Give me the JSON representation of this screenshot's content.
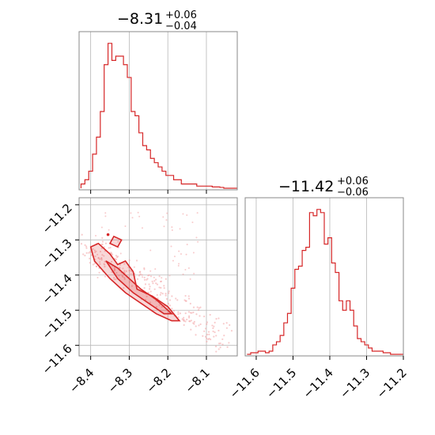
{
  "chart_data": [
    {
      "type": "histogram",
      "title": "−8.31",
      "title_upper": "+0.06",
      "title_lower": "−0.04",
      "xlim": [
        -8.43,
        -8.02
      ],
      "bins": {
        "x": [
          -8.42,
          -8.41,
          -8.4,
          -8.39,
          -8.38,
          -8.37,
          -8.36,
          -8.35,
          -8.34,
          -8.33,
          -8.32,
          -8.31,
          -8.3,
          -8.29,
          -8.28,
          -8.27,
          -8.26,
          -8.25,
          -8.24,
          -8.23,
          -8.22,
          -8.21,
          -8.2,
          -8.19,
          -8.18,
          -8.17,
          -8.16,
          -8.15,
          -8.14,
          -8.13,
          -8.12,
          -8.11,
          -8.1,
          -8.09,
          -8.08,
          -8.07,
          -8.06,
          -8.05,
          -8.04,
          -8.03
        ],
        "counts": [
          1,
          2,
          4,
          8,
          12,
          18,
          29,
          34,
          30,
          31,
          31,
          29,
          26,
          18,
          17,
          13,
          10,
          9,
          7,
          6,
          5,
          4,
          3,
          3,
          2,
          2,
          1,
          1,
          1,
          1,
          0.5,
          0.5,
          0.5,
          0.5,
          0.3,
          0.3,
          0.2,
          0,
          0,
          0
        ]
      },
      "xticks": []
    },
    {
      "type": "scatter",
      "xlim": [
        -8.43,
        -8.02
      ],
      "ylim": [
        -11.63,
        -11.18
      ],
      "xticks": [
        "−8.4",
        "−8.3",
        "−8.2",
        "−8.1"
      ],
      "xtick_values": [
        -8.4,
        -8.3,
        -8.2,
        -8.1
      ],
      "yticks": [
        "−11.2",
        "−11.3",
        "−11.4",
        "−11.5",
        "−11.6"
      ],
      "ytick_values": [
        -11.2,
        -11.3,
        -11.4,
        -11.5,
        -11.6
      ],
      "contours": [
        [
          [
            -8.4,
            -11.32
          ],
          [
            -8.38,
            -11.31
          ],
          [
            -8.35,
            -11.34
          ],
          [
            -8.33,
            -11.37
          ],
          [
            -8.31,
            -11.36
          ],
          [
            -8.29,
            -11.39
          ],
          [
            -8.28,
            -11.44
          ],
          [
            -8.24,
            -11.46
          ],
          [
            -8.2,
            -11.49
          ],
          [
            -8.17,
            -11.53
          ],
          [
            -8.19,
            -11.53
          ],
          [
            -8.23,
            -11.51
          ],
          [
            -8.27,
            -11.48
          ],
          [
            -8.31,
            -11.45
          ],
          [
            -8.35,
            -11.41
          ],
          [
            -8.39,
            -11.36
          ]
        ],
        [
          [
            -8.36,
            -11.36
          ],
          [
            -8.33,
            -11.38
          ],
          [
            -8.3,
            -11.41
          ],
          [
            -8.27,
            -11.44
          ],
          [
            -8.23,
            -11.47
          ],
          [
            -8.19,
            -11.51
          ],
          [
            -8.21,
            -11.51
          ],
          [
            -8.25,
            -11.48
          ],
          [
            -8.29,
            -11.45
          ],
          [
            -8.33,
            -11.41
          ]
        ],
        [
          [
            -8.35,
            -11.31
          ],
          [
            -8.34,
            -11.29
          ],
          [
            -8.32,
            -11.3
          ],
          [
            -8.33,
            -11.32
          ]
        ]
      ]
    },
    {
      "type": "histogram",
      "title": "−11.42",
      "title_upper": "+0.06",
      "title_lower": "−0.06",
      "xlim": [
        -11.63,
        -11.2
      ],
      "bins": {
        "x": [
          -11.62,
          -11.61,
          -11.6,
          -11.59,
          -11.58,
          -11.57,
          -11.56,
          -11.55,
          -11.54,
          -11.53,
          -11.52,
          -11.51,
          -11.5,
          -11.49,
          -11.48,
          -11.47,
          -11.46,
          -11.45,
          -11.44,
          -11.43,
          -11.42,
          -11.41,
          -11.4,
          -11.39,
          -11.38,
          -11.37,
          -11.36,
          -11.35,
          -11.34,
          -11.33,
          -11.32,
          -11.31,
          -11.3,
          -11.29,
          -11.28,
          -11.27,
          -11.26,
          -11.25,
          -11.24,
          -11.23,
          -11.22,
          -11.21
        ],
        "counts": [
          0,
          0.5,
          0.5,
          1,
          1,
          0.5,
          1,
          3,
          4,
          6,
          10,
          13,
          21,
          27,
          28,
          33,
          34,
          45,
          44,
          46,
          45,
          35,
          37,
          29,
          26,
          17,
          14,
          17,
          14,
          9,
          5,
          4,
          3,
          2,
          1,
          1,
          1,
          0.5,
          0.5,
          0,
          0,
          0
        ]
      },
      "xticks": [
        "−11.6",
        "−11.5",
        "−11.4",
        "−11.3",
        "−11.2"
      ],
      "xtick_values": [
        -11.6,
        -11.5,
        -11.4,
        -11.3,
        -11.2
      ]
    }
  ]
}
